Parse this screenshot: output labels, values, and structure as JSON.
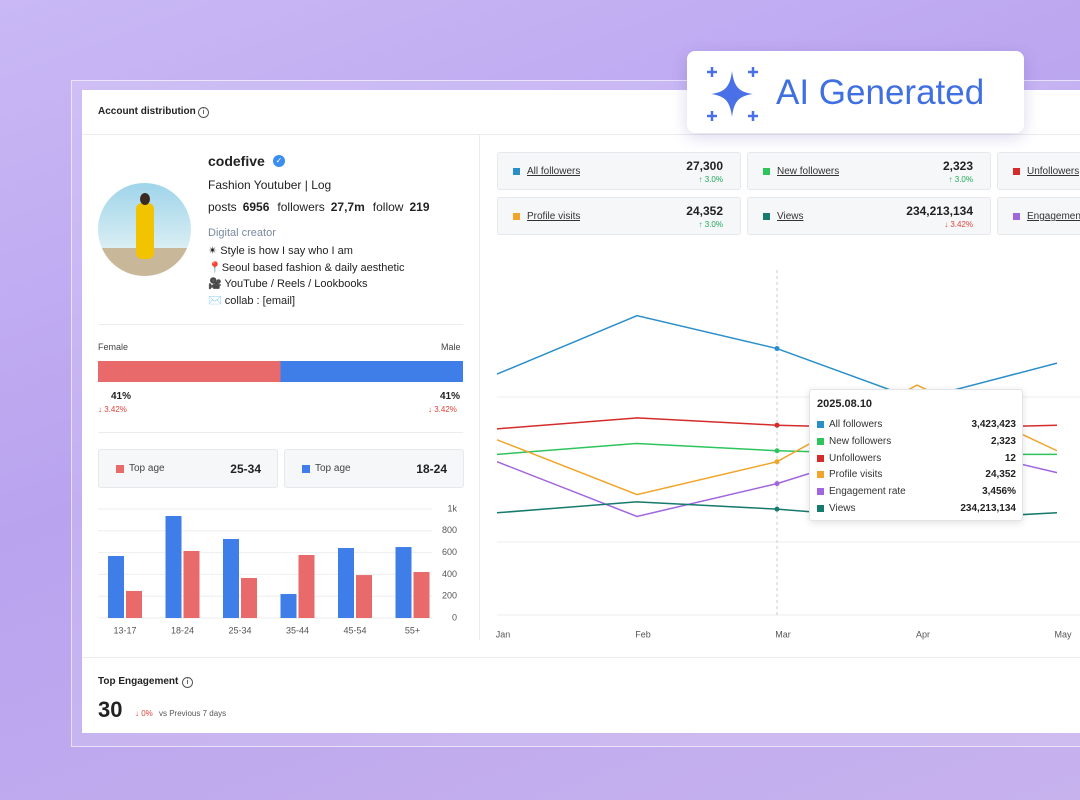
{
  "badge": "AI Generated",
  "header": {
    "title": "Account distribution"
  },
  "profile": {
    "name": "codefive",
    "headline": "Fashion Youtuber | Log",
    "stats": [
      {
        "label": "posts",
        "value": "6956"
      },
      {
        "label": "followers",
        "value": "27,7m"
      },
      {
        "label": "follow",
        "value": "219"
      }
    ],
    "category": "Digital creator",
    "bio": [
      "✴ Style is how I say who I am",
      "📍Seoul based fashion & daily aesthetic",
      "🎥 YouTube / Reels / Lookbooks",
      "✉️ collab : [email]"
    ]
  },
  "gender": {
    "female": {
      "label": "Female",
      "value": 41,
      "value_label": "41%",
      "change": "↓ 3.42%",
      "color": "#e86a6a"
    },
    "male": {
      "label": "Male",
      "value": 41,
      "value_label": "41%",
      "change": "↓ 3.42%",
      "color": "#3f7ee8"
    }
  },
  "top_age": [
    {
      "label": "Top age",
      "value": "25-34",
      "color": "#e86a6a"
    },
    {
      "label": "Top age",
      "value": "18-24",
      "color": "#3f7ee8"
    }
  ],
  "age_chart": {
    "type": "bar",
    "categories": [
      "13-17",
      "18-24",
      "25-34",
      "35-44",
      "45-54",
      "55+"
    ],
    "series": [
      {
        "color": "#3f7ee8",
        "values": [
          569,
          936,
          725,
          220,
          642,
          651
        ]
      },
      {
        "color": "#e86a6a",
        "values": [
          248,
          615,
          367,
          578,
          394,
          422
        ]
      }
    ],
    "ylim": [
      0,
      1000
    ],
    "yticks": [
      0,
      200,
      400,
      600,
      800,
      {
        "value": 1000,
        "label": "1k"
      }
    ],
    "grid": true
  },
  "metrics": [
    {
      "name": "All followers",
      "value": "27,300",
      "change": "↑ 3.0%",
      "trend": "up",
      "color": "#2a8fc9"
    },
    {
      "name": "New followers",
      "value": "2,323",
      "change": "↑ 3.0%",
      "trend": "up",
      "color": "#2ec45c"
    },
    {
      "name": "Unfollowers",
      "color": "#d52b2b"
    },
    {
      "name": "Profile visits",
      "value": "24,352",
      "change": "↑ 3.0%",
      "trend": "up",
      "color": "#f0a52a"
    },
    {
      "name": "Views",
      "value": "234,213,134",
      "change": "↓ 3.42%",
      "trend": "down",
      "color": "#167a6c"
    },
    {
      "name": "Engagement rate",
      "color": "#a066dd"
    }
  ],
  "trend_chart": {
    "type": "line",
    "categories": [
      "Jan",
      "Feb",
      "Mar",
      "Apr",
      "May"
    ],
    "ylim": [
      0,
      100
    ],
    "highlight_index": 2,
    "series": [
      {
        "name": "All followers",
        "color": "#2a8fc9",
        "values": [
          66,
          82,
          73,
          59,
          69
        ]
      },
      {
        "name": "New followers",
        "color": "#2ec45c",
        "values": [
          44,
          47,
          45,
          44,
          44
        ]
      },
      {
        "name": "Unfollowers",
        "color": "#d52b2b",
        "values": [
          51,
          54,
          52,
          51,
          52
        ]
      },
      {
        "name": "Profile visits",
        "color": "#f0a52a",
        "values": [
          48,
          33,
          42,
          63,
          45
        ]
      },
      {
        "name": "Engagement rate",
        "color": "#a066dd",
        "values": [
          42,
          27,
          36,
          48,
          39
        ]
      },
      {
        "name": "Views",
        "color": "#167a6c",
        "values": [
          28,
          31,
          29,
          26,
          28
        ]
      }
    ],
    "tooltip": {
      "title": "2025.08.10",
      "values": [
        "3,423,423",
        "2,323",
        "12",
        "24,352",
        "3,456%",
        "234,213,134"
      ]
    }
  },
  "engagement": {
    "title": "Top Engagement",
    "value": "30",
    "change": "↓ 0%",
    "comparison": "vs Previous 7 days"
  }
}
